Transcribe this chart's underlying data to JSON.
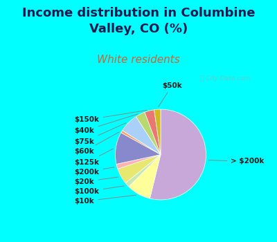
{
  "title": "Income distribution in Columbine\nValley, CO (%)",
  "subtitle": "White residents",
  "outer_bg": "#00FFFF",
  "chart_bg_color": "#e8f5e0",
  "watermark": "ⓘ City-Data.com",
  "labels": [
    "> $200k",
    "$10k",
    "$100k",
    "$20k",
    "$200k",
    "$125k",
    "$60k",
    "$75k",
    "$40k",
    "$150k",
    "$50k"
  ],
  "values": [
    47,
    7.5,
    1.5,
    5.0,
    1.5,
    10.0,
    0.8,
    6.0,
    3.0,
    3.0,
    2.0
  ],
  "colors": [
    "#c8a8d8",
    "#ffff99",
    "#c8e8b0",
    "#e8e870",
    "#ffb0b0",
    "#8888cc",
    "#ffa060",
    "#a8d0f8",
    "#b8d870",
    "#e87870",
    "#d4b820"
  ],
  "title_fontsize": 13,
  "subtitle_fontsize": 11,
  "title_color": "#1a1a4e",
  "subtitle_color": "#cc6633",
  "label_fontsize": 7.5,
  "label_color": "#1a1a1a"
}
